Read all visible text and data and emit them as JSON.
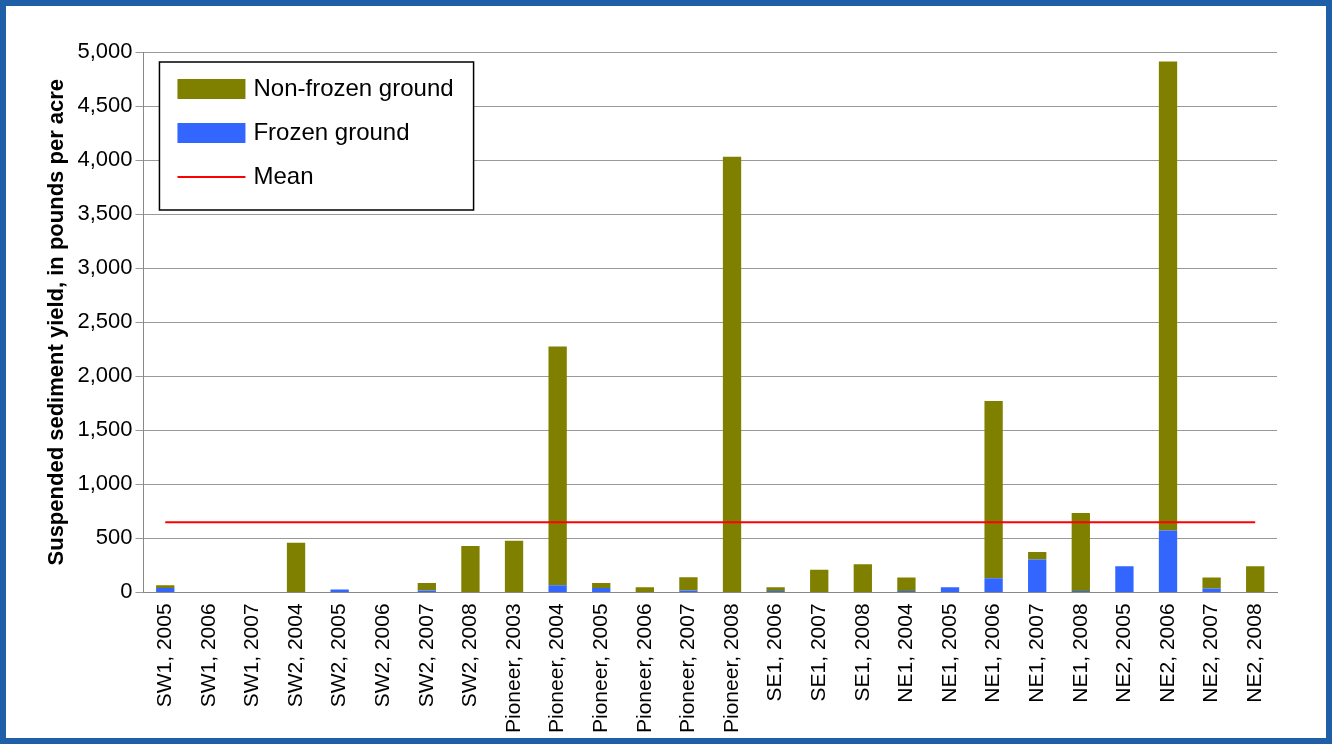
{
  "chart_data": {
    "type": "bar",
    "ylabel": "Suspended sediment yield, in pounds per acre",
    "categories": [
      "SW1, 2005",
      "SW1, 2006",
      "SW1, 2007",
      "SW2, 2004",
      "SW2, 2005",
      "SW2, 2006",
      "SW2, 2007",
      "SW2, 2008",
      "Pioneer, 2003",
      "Pioneer, 2004",
      "Pioneer, 2005",
      "Pioneer, 2006",
      "Pioneer, 2007",
      "Pioneer, 2008",
      "SE1, 2006",
      "SE1, 2007",
      "SE1, 2008",
      "NE1, 2004",
      "NE1, 2005",
      "NE1, 2006",
      "NE1, 2007",
      "NE1, 2008",
      "NE2, 2005",
      "NE2, 2006",
      "NE2, 2007",
      "NE2, 2008"
    ],
    "stacked": true,
    "series": [
      {
        "name": "Frozen ground",
        "color": "#3366ff",
        "values": [
          40,
          0,
          0,
          0,
          26,
          0,
          18,
          0,
          0,
          66,
          40,
          0,
          18,
          0,
          14,
          0,
          0,
          14,
          47,
          130,
          304,
          14,
          243,
          572,
          36,
          0
        ]
      },
      {
        "name": "Non-frozen ground",
        "color": "#808000",
        "values": [
          26,
          0,
          0,
          460,
          0,
          0,
          70,
          430,
          478,
          2210,
          48,
          48,
          122,
          4030,
          33,
          210,
          261,
          124,
          0,
          1640,
          69,
          721,
          0,
          4340,
          102,
          243
        ]
      }
    ],
    "ref_lines": [
      {
        "axis": "y",
        "value": 650,
        "label": "Mean",
        "color": "#ff0000"
      }
    ],
    "ylim": [
      0,
      5000
    ],
    "yticks": [
      {
        "value": 0,
        "label": "0"
      },
      {
        "value": 500,
        "label": "500"
      },
      {
        "value": 1000,
        "label": "1,000"
      },
      {
        "value": 1500,
        "label": "1,500"
      },
      {
        "value": 2000,
        "label": "2,000"
      },
      {
        "value": 2500,
        "label": "2,500"
      },
      {
        "value": 3000,
        "label": "3,000"
      },
      {
        "value": 3500,
        "label": "3,500"
      },
      {
        "value": 4000,
        "label": "4,000"
      },
      {
        "value": 4500,
        "label": "4,500"
      },
      {
        "value": 5000,
        "label": "5,000"
      }
    ],
    "grid": "y",
    "legend": "top left"
  }
}
